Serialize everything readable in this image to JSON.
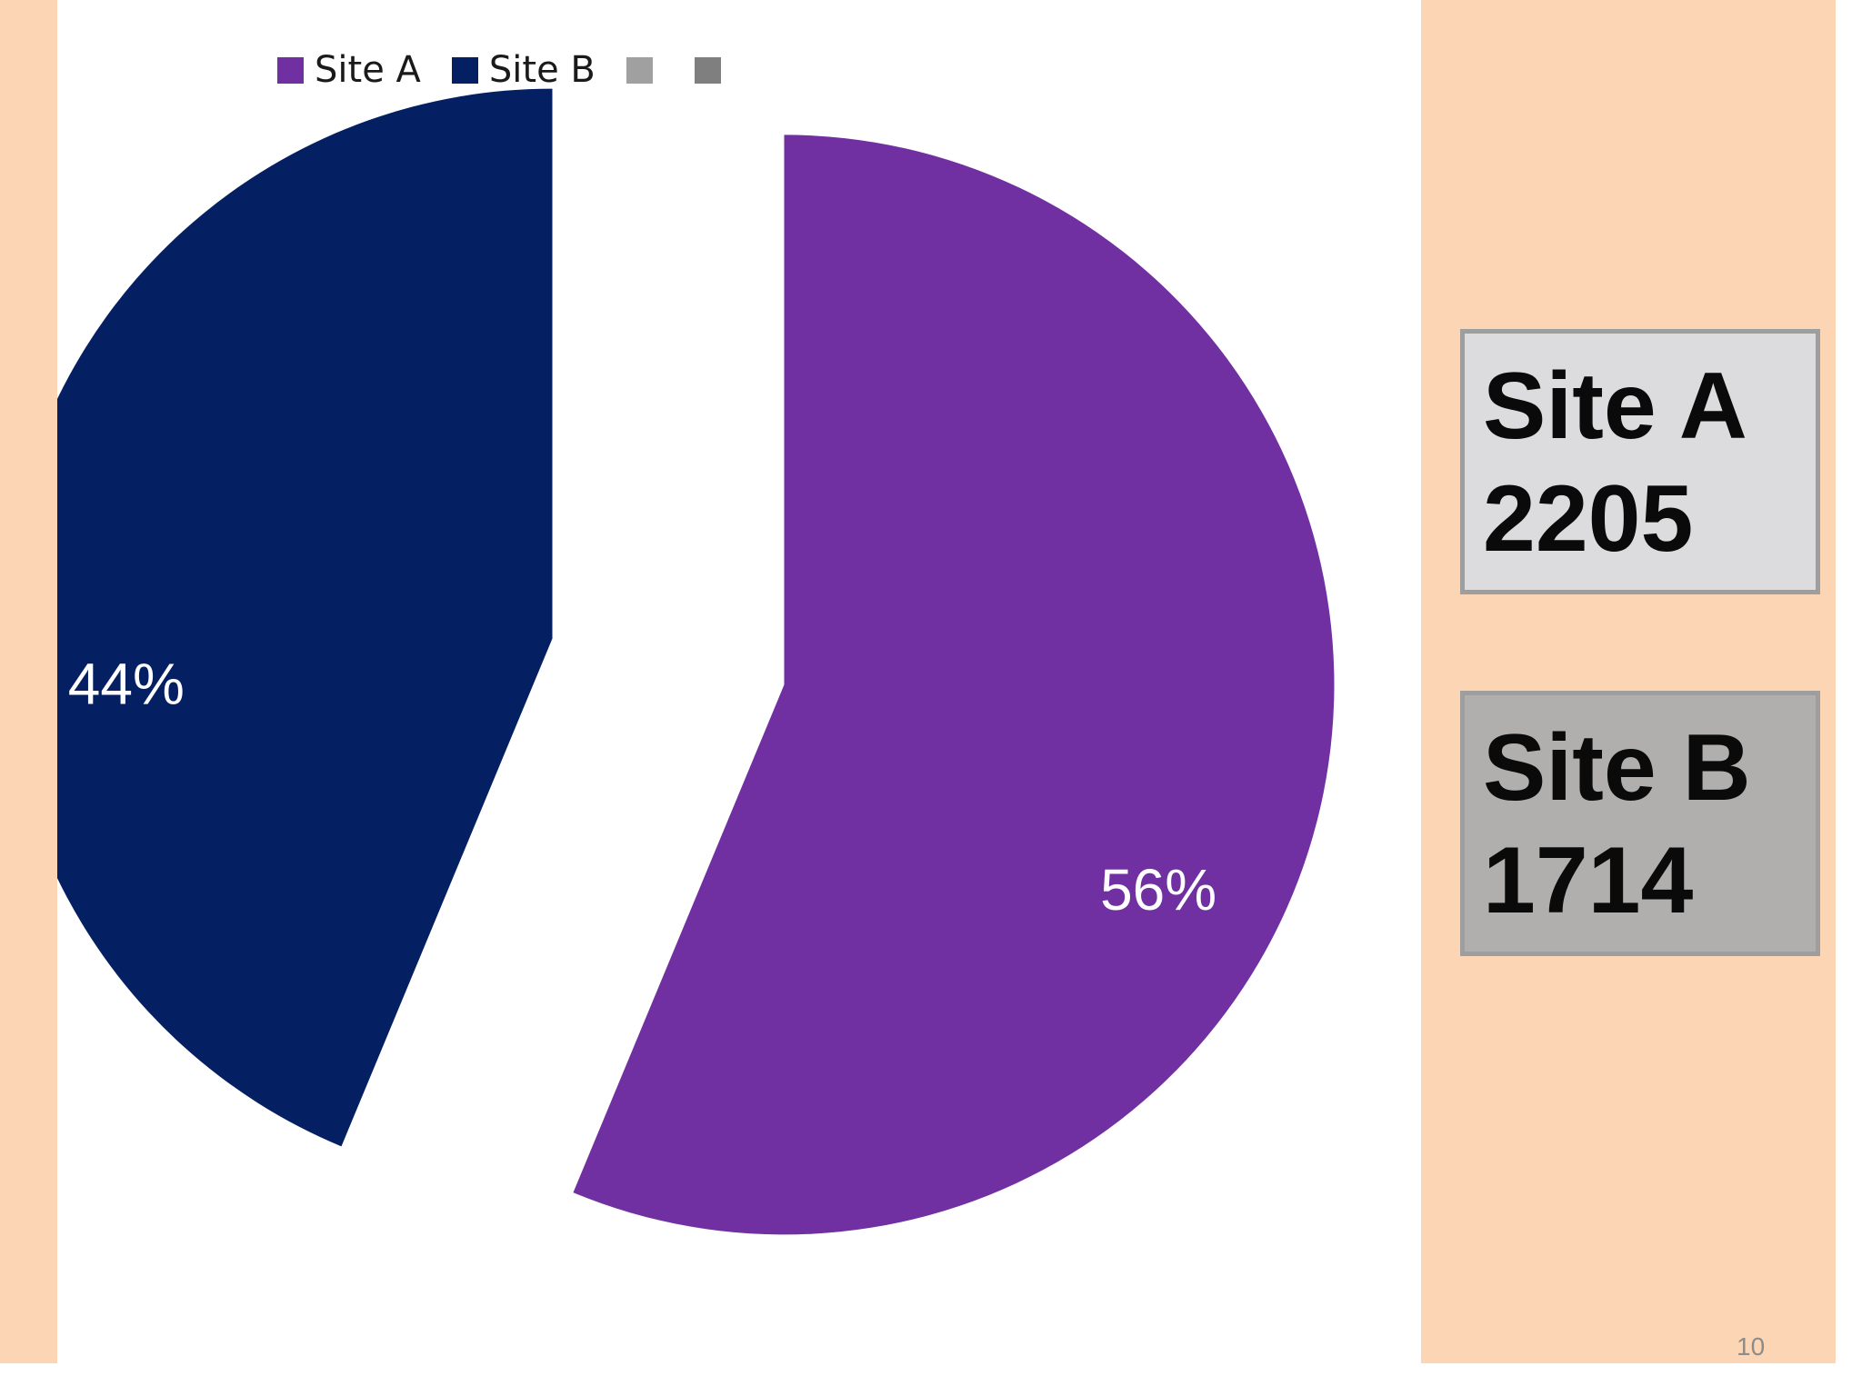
{
  "theme": {
    "strip_color": "#fcd5b5",
    "box_a_color": "#dcdcde",
    "box_b_color": "#b0afae"
  },
  "legend": [
    {
      "label": "Site A",
      "color": "#7130a1"
    },
    {
      "label": "Site B",
      "color": "#041f62"
    },
    {
      "label": "",
      "color": "#a0a0a0"
    },
    {
      "label": "",
      "color": "#7f7f7f"
    }
  ],
  "chart_data": {
    "type": "pie",
    "exploded": true,
    "start_angle_deg": 0,
    "direction": "clockwise",
    "slices": [
      {
        "name": "Site A",
        "value": 2205,
        "percent_label": "56%",
        "color": "#7130a1"
      },
      {
        "name": "Site B",
        "value": 1714,
        "percent_label": "44%",
        "color": "#041f62"
      }
    ]
  },
  "boxes": {
    "site_a": {
      "name": "Site A",
      "value": "2205"
    },
    "site_b": {
      "name": "Site B",
      "value": "1714"
    }
  },
  "page_number": "10"
}
